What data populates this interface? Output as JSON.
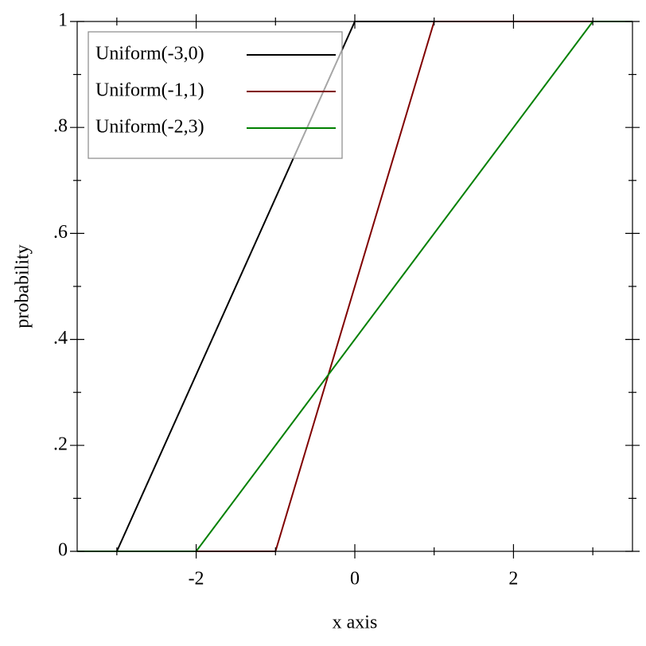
{
  "chart_data": {
    "type": "line",
    "x_label": "x axis",
    "y_label": "probability",
    "xlim": [
      -3.5,
      3.5
    ],
    "ylim": [
      0,
      1
    ],
    "xticks": [
      -2,
      0,
      2
    ],
    "xminorticks": [
      -3,
      -1,
      1,
      3
    ],
    "yticks": [
      0,
      {
        "value": 0.2,
        "label": ".2"
      },
      {
        "value": 0.4,
        "label": ".4"
      },
      {
        "value": 0.6,
        "label": ".6"
      },
      {
        "value": 0.8,
        "label": ".8"
      },
      1
    ],
    "yminorticks": [
      0.1,
      0.3,
      0.5,
      0.7,
      0.9
    ],
    "legend": "top-left",
    "series": [
      {
        "name": "Uniform(-3,0)",
        "color": "#000000",
        "x": [
          -3.5,
          -3,
          0,
          3.5
        ],
        "values": [
          0,
          0,
          1,
          1
        ]
      },
      {
        "name": "Uniform(-1,1)",
        "color": "#800000",
        "x": [
          -3.5,
          -1,
          1,
          3.5
        ],
        "values": [
          0,
          0,
          1,
          1
        ]
      },
      {
        "name": "Uniform(-2,3)",
        "color": "#008000",
        "x": [
          -3.5,
          -2,
          3,
          3.5
        ],
        "values": [
          0,
          0,
          1,
          1
        ]
      }
    ]
  }
}
